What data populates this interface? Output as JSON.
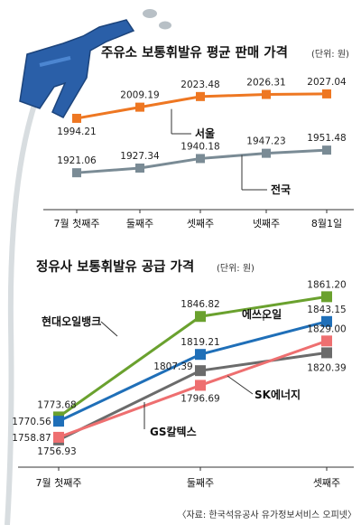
{
  "chart_data": [
    {
      "type": "line",
      "title": "주유소 보통휘발유 평균 판매 가격",
      "unit": "(단위: 원)",
      "categories": [
        "7월 첫째주",
        "둘째주",
        "셋째주",
        "넷째주",
        "8월1일"
      ],
      "ylim": [
        1880,
        2050
      ],
      "series": [
        {
          "name": "서울",
          "values": [
            1994.21,
            2009.19,
            2023.48,
            2026.31,
            2027.04
          ],
          "color": "#ee7722",
          "labels": [
            "1994.21",
            "2009.19",
            "2023.48",
            "2026.31",
            "2027.04"
          ]
        },
        {
          "name": "전국",
          "values": [
            1921.06,
            1927.34,
            1940.18,
            1947.23,
            1951.48
          ],
          "color": "#7a8b95",
          "labels": [
            "1921.06",
            "1927.34",
            "1940.18",
            "1947.23",
            "1951.48"
          ]
        }
      ]
    },
    {
      "type": "line",
      "title": "정유사 보통휘발유 공급 가격",
      "unit": "(단위: 원)",
      "categories": [
        "7월 첫째주",
        "둘째주",
        "셋째주"
      ],
      "ylim": [
        1745,
        1870
      ],
      "series": [
        {
          "name": "현대오일뱅크",
          "values": [
            1773.68,
            1846.82,
            1861.2
          ],
          "color": "#6aa12e",
          "labels": [
            "1773.68",
            "1846.82",
            "1861.20"
          ]
        },
        {
          "name": "에쓰오일",
          "values": [
            1770.56,
            1819.21,
            1843.15
          ],
          "color": "#1f6fb8",
          "labels": [
            "1770.56",
            "1819.21",
            "1843.15"
          ]
        },
        {
          "name": "SK에너지",
          "values": [
            1756.93,
            1807.39,
            1820.39
          ],
          "color": "#6b6b6b",
          "labels": [
            "1756.93",
            "1807.39",
            "1820.39"
          ]
        },
        {
          "name": "GS칼텍스",
          "values": [
            1758.87,
            1796.69,
            1829.0
          ],
          "color": "#ee6f70",
          "labels": [
            "1758.87",
            "1796.69",
            "1829.00"
          ]
        }
      ]
    }
  ],
  "source": "〈자료: 한국석유공사 유가정보서비스 오피넷〉",
  "colors": {
    "nozzle": "#2a5fa8",
    "hose": "#d8dde0"
  },
  "icons": [
    "fuel-nozzle-icon",
    "fuel-drop-icon"
  ]
}
